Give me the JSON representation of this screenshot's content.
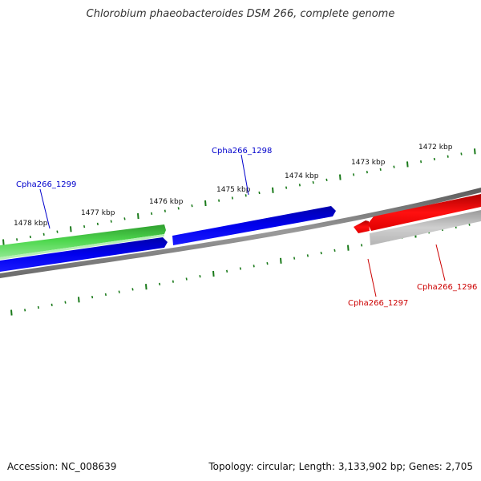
{
  "title": "Chlorobium phaeobacteroides DSM 266, complete genome",
  "footer": {
    "accession": "Accession: NC_008639",
    "summary": "Topology: circular; Length: 3,133,902 bp; Genes: 2,705"
  },
  "colors": {
    "backbone": "#7a7a7a",
    "ticks": "#1a7a1a",
    "forward_gene_a": "#0000ee",
    "forward_gene_b": "#3fcf3f",
    "reverse_gene_a": "#ee0000",
    "reverse_gene_b": "#bdbdbd",
    "label_blue": "#0000cc",
    "label_red": "#cc0000"
  },
  "tick_labels": [
    "1478 kbp",
    "1477 kbp",
    "1476 kbp",
    "1475 kbp",
    "1474 kbp",
    "1473 kbp",
    "1472 kbp"
  ],
  "genes": [
    {
      "label": "Cpha266_1299",
      "strand": "forward",
      "color": "green"
    },
    {
      "label": "Cpha266_1298",
      "strand": "forward",
      "color": "blue"
    },
    {
      "label": "Cpha266_1297",
      "strand": "reverse",
      "color": "red"
    },
    {
      "label": "Cpha266_1296",
      "strand": "reverse",
      "color": "gray"
    }
  ]
}
